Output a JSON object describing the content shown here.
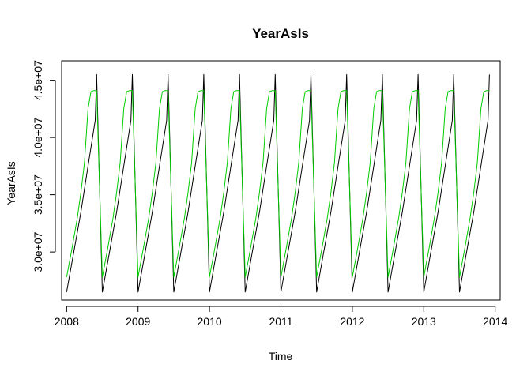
{
  "chart_data": {
    "type": "line",
    "title": "YearAsIs",
    "xlabel": "Time",
    "ylabel": "YearAsIs",
    "xlim": [
      2007.93,
      2014.07
    ],
    "ylim": [
      25800000,
      46700000
    ],
    "x_ticks": [
      "2008",
      "2009",
      "2010",
      "2011",
      "2012",
      "2013",
      "2014"
    ],
    "y_ticks": [
      "3.0e+07",
      "3.5e+07",
      "4.0e+07",
      "4.5e+07"
    ],
    "grid": false,
    "legend": "none",
    "series": [
      {
        "color": "#000000",
        "values": [
          [
            2008.0,
            26500000
          ],
          [
            2008.1,
            30000000
          ],
          [
            2008.2,
            33500000
          ],
          [
            2008.3,
            37500000
          ],
          [
            2008.4,
            41500000
          ],
          [
            2008.42,
            45500000
          ],
          [
            2008.5,
            26500000
          ],
          [
            2008.6,
            30000000
          ],
          [
            2008.7,
            33500000
          ],
          [
            2008.8,
            37500000
          ],
          [
            2008.9,
            41500000
          ],
          [
            2008.92,
            45500000
          ],
          [
            2009.0,
            26500000
          ],
          [
            2009.1,
            30000000
          ],
          [
            2009.2,
            33500000
          ],
          [
            2009.3,
            37500000
          ],
          [
            2009.4,
            41500000
          ],
          [
            2009.42,
            45500000
          ],
          [
            2009.5,
            26500000
          ],
          [
            2009.6,
            30000000
          ],
          [
            2009.7,
            33500000
          ],
          [
            2009.8,
            37500000
          ],
          [
            2009.9,
            41500000
          ],
          [
            2009.92,
            45500000
          ],
          [
            2010.0,
            26500000
          ],
          [
            2010.1,
            30000000
          ],
          [
            2010.2,
            33500000
          ],
          [
            2010.3,
            37500000
          ],
          [
            2010.4,
            41500000
          ],
          [
            2010.42,
            45500000
          ],
          [
            2010.5,
            26500000
          ],
          [
            2010.6,
            30000000
          ],
          [
            2010.7,
            33500000
          ],
          [
            2010.8,
            37500000
          ],
          [
            2010.9,
            41500000
          ],
          [
            2010.92,
            45500000
          ],
          [
            2011.0,
            26500000
          ],
          [
            2011.1,
            30000000
          ],
          [
            2011.2,
            33500000
          ],
          [
            2011.3,
            37500000
          ],
          [
            2011.4,
            41500000
          ],
          [
            2011.42,
            45500000
          ],
          [
            2011.5,
            26500000
          ],
          [
            2011.6,
            30000000
          ],
          [
            2011.7,
            33500000
          ],
          [
            2011.8,
            37500000
          ],
          [
            2011.9,
            41500000
          ],
          [
            2011.92,
            45500000
          ],
          [
            2012.0,
            26500000
          ],
          [
            2012.1,
            30000000
          ],
          [
            2012.2,
            33500000
          ],
          [
            2012.3,
            37500000
          ],
          [
            2012.4,
            41500000
          ],
          [
            2012.42,
            45500000
          ],
          [
            2012.5,
            26500000
          ],
          [
            2012.6,
            30000000
          ],
          [
            2012.7,
            33500000
          ],
          [
            2012.8,
            37500000
          ],
          [
            2012.9,
            41500000
          ],
          [
            2012.92,
            45500000
          ],
          [
            2013.0,
            26500000
          ],
          [
            2013.1,
            30000000
          ],
          [
            2013.2,
            33500000
          ],
          [
            2013.3,
            37500000
          ],
          [
            2013.4,
            41500000
          ],
          [
            2013.42,
            45500000
          ],
          [
            2013.5,
            26500000
          ],
          [
            2013.6,
            30000000
          ],
          [
            2013.7,
            33500000
          ],
          [
            2013.8,
            37500000
          ],
          [
            2013.9,
            41500000
          ],
          [
            2013.92,
            45500000
          ]
        ]
      },
      {
        "color": "#00cc00",
        "values": [
          [
            2008.0,
            27800000
          ],
          [
            2008.08,
            30500000
          ],
          [
            2008.15,
            33000000
          ],
          [
            2008.2,
            35200000
          ],
          [
            2008.25,
            37800000
          ],
          [
            2008.3,
            42500000
          ],
          [
            2008.34,
            44000000
          ],
          [
            2008.38,
            44100000
          ],
          [
            2008.42,
            44100000
          ],
          [
            2008.5,
            27800000
          ],
          [
            2008.58,
            30500000
          ],
          [
            2008.65,
            33000000
          ],
          [
            2008.7,
            35200000
          ],
          [
            2008.75,
            37800000
          ],
          [
            2008.8,
            42500000
          ],
          [
            2008.84,
            44000000
          ],
          [
            2008.88,
            44100000
          ],
          [
            2008.92,
            44100000
          ],
          [
            2009.0,
            27800000
          ],
          [
            2009.08,
            30500000
          ],
          [
            2009.15,
            33000000
          ],
          [
            2009.2,
            35200000
          ],
          [
            2009.25,
            37800000
          ],
          [
            2009.3,
            42500000
          ],
          [
            2009.34,
            44000000
          ],
          [
            2009.38,
            44100000
          ],
          [
            2009.42,
            44100000
          ],
          [
            2009.5,
            27800000
          ],
          [
            2009.58,
            30500000
          ],
          [
            2009.65,
            33000000
          ],
          [
            2009.7,
            35200000
          ],
          [
            2009.75,
            37800000
          ],
          [
            2009.8,
            42500000
          ],
          [
            2009.84,
            44000000
          ],
          [
            2009.88,
            44100000
          ],
          [
            2009.92,
            44100000
          ],
          [
            2010.0,
            27800000
          ],
          [
            2010.08,
            30500000
          ],
          [
            2010.15,
            33000000
          ],
          [
            2010.2,
            35200000
          ],
          [
            2010.25,
            37800000
          ],
          [
            2010.3,
            42500000
          ],
          [
            2010.34,
            44000000
          ],
          [
            2010.38,
            44100000
          ],
          [
            2010.42,
            44100000
          ],
          [
            2010.5,
            27800000
          ],
          [
            2010.58,
            30500000
          ],
          [
            2010.65,
            33000000
          ],
          [
            2010.7,
            35200000
          ],
          [
            2010.75,
            37800000
          ],
          [
            2010.8,
            42500000
          ],
          [
            2010.84,
            44000000
          ],
          [
            2010.88,
            44100000
          ],
          [
            2010.92,
            44100000
          ],
          [
            2011.0,
            27800000
          ],
          [
            2011.08,
            30500000
          ],
          [
            2011.15,
            33000000
          ],
          [
            2011.2,
            35200000
          ],
          [
            2011.25,
            37800000
          ],
          [
            2011.3,
            42500000
          ],
          [
            2011.34,
            44000000
          ],
          [
            2011.38,
            44100000
          ],
          [
            2011.42,
            44100000
          ],
          [
            2011.5,
            27800000
          ],
          [
            2011.58,
            30500000
          ],
          [
            2011.65,
            33000000
          ],
          [
            2011.7,
            35200000
          ],
          [
            2011.75,
            37800000
          ],
          [
            2011.8,
            42500000
          ],
          [
            2011.84,
            44000000
          ],
          [
            2011.88,
            44100000
          ],
          [
            2011.92,
            44100000
          ],
          [
            2012.0,
            27800000
          ],
          [
            2012.08,
            30500000
          ],
          [
            2012.15,
            33000000
          ],
          [
            2012.2,
            35200000
          ],
          [
            2012.25,
            37800000
          ],
          [
            2012.3,
            42500000
          ],
          [
            2012.34,
            44000000
          ],
          [
            2012.38,
            44100000
          ],
          [
            2012.42,
            44100000
          ],
          [
            2012.5,
            27800000
          ],
          [
            2012.58,
            30500000
          ],
          [
            2012.65,
            33000000
          ],
          [
            2012.7,
            35200000
          ],
          [
            2012.75,
            37800000
          ],
          [
            2012.8,
            42500000
          ],
          [
            2012.84,
            44000000
          ],
          [
            2012.88,
            44100000
          ],
          [
            2012.92,
            44100000
          ],
          [
            2013.0,
            27800000
          ],
          [
            2013.08,
            30500000
          ],
          [
            2013.15,
            33000000
          ],
          [
            2013.2,
            35200000
          ],
          [
            2013.25,
            37800000
          ],
          [
            2013.3,
            42500000
          ],
          [
            2013.34,
            44000000
          ],
          [
            2013.38,
            44100000
          ],
          [
            2013.42,
            44100000
          ],
          [
            2013.5,
            27800000
          ],
          [
            2013.58,
            30500000
          ],
          [
            2013.65,
            33000000
          ],
          [
            2013.7,
            35200000
          ],
          [
            2013.75,
            37800000
          ],
          [
            2013.8,
            42500000
          ],
          [
            2013.84,
            44000000
          ],
          [
            2013.88,
            44100000
          ],
          [
            2013.92,
            44100000
          ]
        ]
      }
    ]
  }
}
